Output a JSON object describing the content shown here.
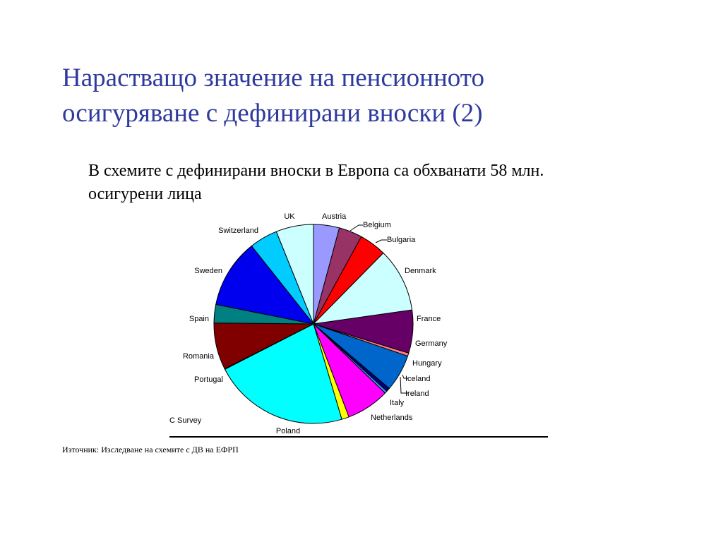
{
  "slide": {
    "title_lines": [
      "Нарастващо значение на пенсионното",
      "осигуряване с дефинирани вноски (2)"
    ],
    "body_lines": [
      "В схемите с дефинирани вноски в Европа са обхванати 58 млн.",
      "осигурени лица"
    ],
    "source": "Източник: Изследване на схемите с ДВ на ЕФРП"
  },
  "chart_data": {
    "type": "pie",
    "note": "C Survey",
    "start": "12 o'clock, clockwise",
    "slices": [
      {
        "label": "Austria",
        "value": 4.2,
        "color": "#9999ff"
      },
      {
        "label": "Belgium",
        "value": 3.8,
        "color": "#993366"
      },
      {
        "label": "Bulgaria",
        "value": 4.4,
        "color": "#ff0000"
      },
      {
        "label": "Denmark",
        "value": 10.4,
        "color": "#ccffff"
      },
      {
        "label": "France",
        "value": 7.0,
        "color": "#660066"
      },
      {
        "label": "Germany",
        "value": 0.5,
        "color": "#ff8080"
      },
      {
        "label": "Hungary",
        "value": 6.0,
        "color": "#0066cc"
      },
      {
        "label": "Iceland",
        "value": 0.6,
        "color": "#000080"
      },
      {
        "label": "Ireland",
        "value": 0.4,
        "color": "#3399ff"
      },
      {
        "label": "Italy",
        "value": 7.0,
        "color": "#ff00ff"
      },
      {
        "label": "Netherlands",
        "value": 1.2,
        "color": "#ffff00"
      },
      {
        "label": "Poland",
        "value": 22.1,
        "color": "#00ffff"
      },
      {
        "label": "Portugal",
        "value": 0.1,
        "color": "#00ffff"
      },
      {
        "label": "Romania",
        "value": 7.6,
        "color": "#800000"
      },
      {
        "label": "Spain",
        "value": 3.0,
        "color": "#008080"
      },
      {
        "label": "Sweden",
        "value": 11.2,
        "color": "#0000ee"
      },
      {
        "label": "Switzerland",
        "value": 4.6,
        "color": "#00ccff"
      },
      {
        "label": "UK",
        "value": 6.1,
        "color": "#ccffff"
      }
    ]
  }
}
